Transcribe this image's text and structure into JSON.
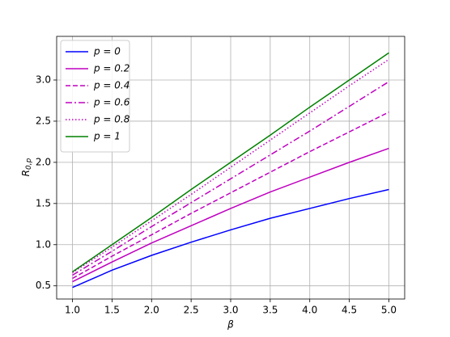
{
  "chart_data": {
    "type": "line",
    "xlabel": "β",
    "ylabel": {
      "text": "R",
      "subscript": "0,p"
    },
    "x": [
      1.0,
      1.5,
      2.0,
      2.5,
      3.0,
      3.5,
      4.0,
      4.5,
      5.0
    ],
    "series": [
      {
        "name": "p = 0",
        "color": "#0000ff",
        "dash": "solid",
        "values": [
          0.48,
          0.69,
          0.87,
          1.03,
          1.18,
          1.32,
          1.44,
          1.56,
          1.67
        ]
      },
      {
        "name": "p = 0.2",
        "color": "#bf00bf",
        "dash": "solid",
        "values": [
          0.55,
          0.79,
          1.02,
          1.23,
          1.44,
          1.64,
          1.82,
          2.0,
          2.17
        ]
      },
      {
        "name": "p = 0.4",
        "color": "#bf00bf",
        "dash": "dashed",
        "values": [
          0.59,
          0.86,
          1.12,
          1.38,
          1.63,
          1.88,
          2.13,
          2.37,
          2.61
        ]
      },
      {
        "name": "p = 0.6",
        "color": "#bf00bf",
        "dash": "dashdot",
        "values": [
          0.63,
          0.92,
          1.22,
          1.51,
          1.8,
          2.09,
          2.38,
          2.68,
          2.98
        ]
      },
      {
        "name": "p = 0.8",
        "color": "#bf00bf",
        "dash": "dotted",
        "values": [
          0.66,
          0.97,
          1.29,
          1.61,
          1.94,
          2.27,
          2.6,
          2.93,
          3.25
        ]
      },
      {
        "name": "p = 1",
        "color": "#008000",
        "dash": "solid",
        "values": [
          0.67,
          1.0,
          1.33,
          1.67,
          2.0,
          2.33,
          2.67,
          3.0,
          3.33
        ]
      }
    ],
    "xlim": [
      0.8,
      5.2
    ],
    "ylim": [
      0.34,
      3.53
    ],
    "xticks": [
      {
        "value": 1,
        "label": "1.0"
      },
      1.5,
      {
        "value": 2,
        "label": "2.0"
      },
      2.5,
      {
        "value": 3,
        "label": "3.0"
      },
      3.5,
      {
        "value": 4,
        "label": "4.0"
      },
      4.5,
      {
        "value": 5,
        "label": "5.0"
      }
    ],
    "yticks": [
      0.5,
      {
        "value": 1,
        "label": "1.0"
      },
      1.5,
      {
        "value": 2,
        "label": "2.0"
      },
      2.5,
      {
        "value": 3,
        "label": "3.0"
      }
    ],
    "grid": true,
    "legend": "upper-left"
  }
}
